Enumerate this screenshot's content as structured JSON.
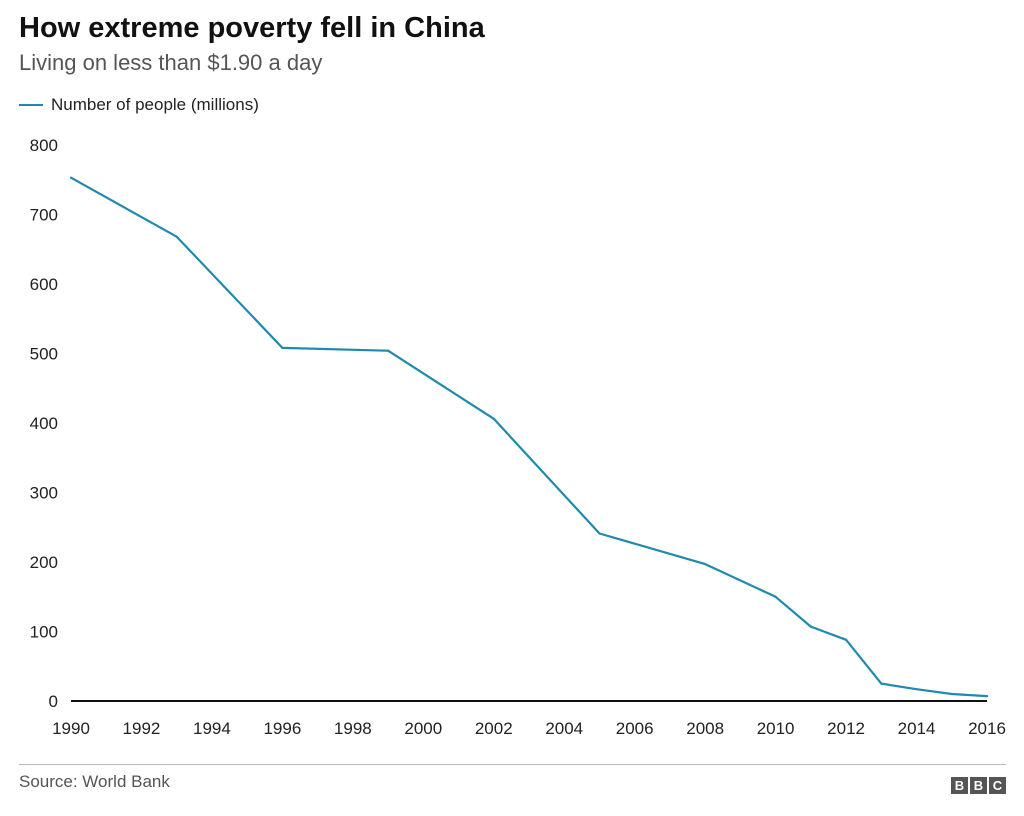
{
  "header": {
    "title": "How extreme poverty fell in China",
    "subtitle": "Living on less than $1.90 a day"
  },
  "footer": {
    "source": "Source: World Bank",
    "logo_letters": [
      "B",
      "B",
      "C"
    ]
  },
  "chart_data": {
    "type": "line",
    "title": "How extreme poverty fell in China",
    "subtitle": "Living on less than $1.90 a day",
    "xlabel": "",
    "ylabel": "",
    "xlim": [
      1990,
      2016
    ],
    "ylim": [
      0,
      800
    ],
    "x_ticks": [
      1990,
      1992,
      1994,
      1996,
      1998,
      2000,
      2002,
      2004,
      2006,
      2008,
      2010,
      2012,
      2014,
      2016
    ],
    "y_ticks": [
      0,
      100,
      200,
      300,
      400,
      500,
      600,
      700,
      800
    ],
    "grid": false,
    "legend_position": "top-left",
    "series": [
      {
        "name": "Number of people (millions)",
        "color": "#1f8aad",
        "x": [
          1990,
          1993,
          1996,
          1999,
          2002,
          2005,
          2008,
          2010,
          2011,
          2012,
          2013,
          2014,
          2015,
          2016
        ],
        "y": [
          753,
          668,
          508,
          504,
          406,
          241,
          197,
          150,
          107,
          88,
          25,
          17,
          10,
          7
        ]
      }
    ]
  }
}
